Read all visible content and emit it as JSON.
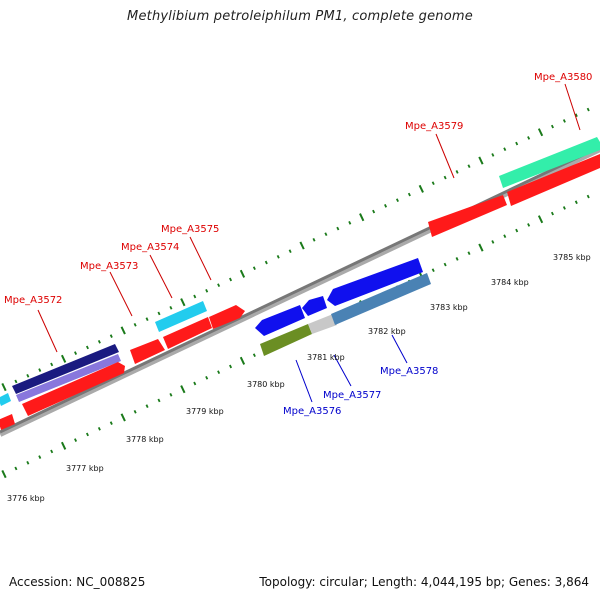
{
  "title": "Methylibium petroleiphilum PM1, complete genome",
  "footer": {
    "accession": "Accession: NC_008825",
    "summary": "Topology: circular; Length: 4,044,195 bp; Genes: 3,864"
  },
  "ruler": {
    "labels": [
      "3776 kbp",
      "3777 kbp",
      "3778 kbp",
      "3779 kbp",
      "3780 kbp",
      "3781 kbp",
      "3782 kbp",
      "3783 kbp",
      "3784 kbp",
      "3785 kbp"
    ]
  },
  "genes_forward": [
    {
      "label": "Mpe_A3572",
      "color": "#dd0000"
    },
    {
      "label": "Mpe_A3573",
      "color": "#dd0000"
    },
    {
      "label": "Mpe_A3574",
      "color": "#dd0000"
    },
    {
      "label": "Mpe_A3575",
      "color": "#dd0000"
    },
    {
      "label": "Mpe_A3579",
      "color": "#dd0000"
    },
    {
      "label": "Mpe_A3580",
      "color": "#dd0000"
    }
  ],
  "genes_reverse": [
    {
      "label": "Mpe_A3576",
      "color": "#0000cc"
    },
    {
      "label": "Mpe_A3577",
      "color": "#0000cc"
    },
    {
      "label": "Mpe_A3578",
      "color": "#0000cc"
    }
  ],
  "colors": {
    "backbone": "#888888",
    "tick": "#1a7a1a",
    "cds_forward": "#ff1a1a",
    "cds_reverse": "#1010ee",
    "cog_cyan": "#22ccee",
    "cog_navy": "#1a1a80",
    "cog_lavender": "#8877dd",
    "cog_mint": "#33eeaa",
    "cog_steel": "#4a82b4",
    "cog_olive": "#6b8e23",
    "cog_grey": "#c8c8c8"
  }
}
